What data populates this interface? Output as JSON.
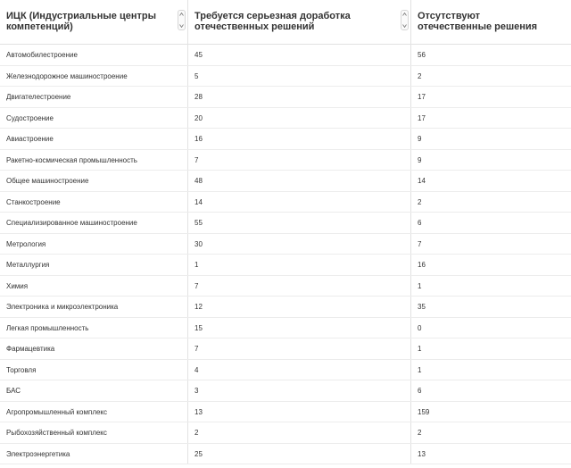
{
  "table": {
    "headers": [
      {
        "label": "ИЦК (Индустриальные центры компетенций)"
      },
      {
        "label": "Требуется серьезная доработка отечественных решений"
      },
      {
        "label": "Отсутствуют отечественные решения"
      }
    ],
    "rows": [
      {
        "name": "Автомобилестроение",
        "rework": "45",
        "absent": "56"
      },
      {
        "name": "Железнодорожное машиностроение",
        "rework": "5",
        "absent": "2"
      },
      {
        "name": "Двигателестроение",
        "rework": "28",
        "absent": "17"
      },
      {
        "name": "Судостроение",
        "rework": "20",
        "absent": "17"
      },
      {
        "name": "Авиастроение",
        "rework": "16",
        "absent": "9"
      },
      {
        "name": "Ракетно-космическая промышленность",
        "rework": "7",
        "absent": "9"
      },
      {
        "name": "Общее машиностроение",
        "rework": "48",
        "absent": "14"
      },
      {
        "name": "Станкостроение",
        "rework": "14",
        "absent": "2"
      },
      {
        "name": "Специализированное машиностроение",
        "rework": "55",
        "absent": "6"
      },
      {
        "name": "Метрология",
        "rework": "30",
        "absent": "7"
      },
      {
        "name": "Металлургия",
        "rework": "1",
        "absent": "16"
      },
      {
        "name": "Химия",
        "rework": "7",
        "absent": "1"
      },
      {
        "name": "Электроника и микроэлектроника",
        "rework": "12",
        "absent": "35"
      },
      {
        "name": "Легкая промышленность",
        "rework": "15",
        "absent": "0"
      },
      {
        "name": "Фармацевтика",
        "rework": "7",
        "absent": "1"
      },
      {
        "name": "Торговля",
        "rework": "4",
        "absent": "1"
      },
      {
        "name": "БАС",
        "rework": "3",
        "absent": "6"
      },
      {
        "name": "Агропромышленный комплекс",
        "rework": "13",
        "absent": "159"
      },
      {
        "name": "Рыбохозяйственный комплекс",
        "rework": "2",
        "absent": "2"
      },
      {
        "name": "Электроэнергетика",
        "rework": "25",
        "absent": "13"
      }
    ]
  },
  "icons": {
    "sort": "sort-arrows-icon"
  },
  "colors": {
    "border": "#e2e2e2",
    "text": "#333333",
    "background": "#ffffff"
  }
}
